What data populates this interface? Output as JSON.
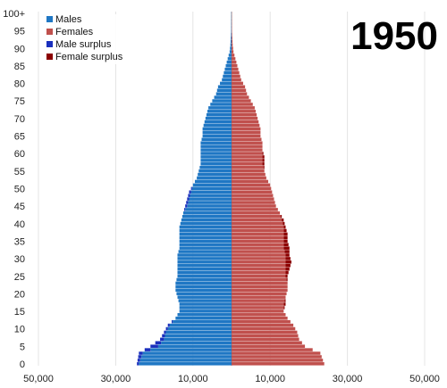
{
  "chart_data": {
    "type": "bar",
    "title": "1950",
    "orientation": "horizontal population pyramid",
    "y_tick_labels": [
      "0",
      "5",
      "10",
      "15",
      "20",
      "25",
      "30",
      "35",
      "40",
      "45",
      "50",
      "55",
      "60",
      "65",
      "70",
      "75",
      "80",
      "85",
      "90",
      "95",
      "100+"
    ],
    "x_tick_labels": [
      "50,000",
      "30,000",
      "10,000",
      "10,000",
      "30,000",
      "50,000"
    ],
    "x_tick_values": [
      -50000,
      -30000,
      -10000,
      10000,
      30000,
      50000
    ],
    "xlim": [
      -50000,
      50000
    ],
    "grid": "vertical",
    "legend_position": "top-left",
    "legend": [
      {
        "key": "males",
        "label": "Males",
        "color": "#1f77c4"
      },
      {
        "key": "females",
        "label": "Females",
        "color": "#c0504d"
      },
      {
        "key": "male_surplus",
        "label": "Male surplus",
        "color": "#1a2fbd"
      },
      {
        "key": "female_surplus",
        "label": "Female surplus",
        "color": "#8b0000"
      }
    ],
    "male_keys": [
      [
        0,
        24500
      ],
      [
        3,
        24000
      ],
      [
        5,
        21000
      ],
      [
        7,
        18500
      ],
      [
        9,
        17500
      ],
      [
        11,
        16500
      ],
      [
        13,
        14500
      ],
      [
        15,
        13500
      ],
      [
        17,
        13500
      ],
      [
        19,
        14000
      ],
      [
        21,
        14500
      ],
      [
        23,
        14500
      ],
      [
        25,
        14000
      ],
      [
        27,
        14000
      ],
      [
        29,
        14000
      ],
      [
        31,
        14000
      ],
      [
        33,
        13500
      ],
      [
        35,
        13500
      ],
      [
        37,
        13500
      ],
      [
        39,
        13500
      ],
      [
        41,
        13000
      ],
      [
        43,
        12500
      ],
      [
        45,
        12000
      ],
      [
        47,
        11500
      ],
      [
        49,
        11000
      ],
      [
        51,
        10000
      ],
      [
        53,
        9000
      ],
      [
        55,
        8500
      ],
      [
        57,
        8000
      ],
      [
        59,
        8000
      ],
      [
        61,
        8000
      ],
      [
        63,
        8000
      ],
      [
        65,
        7500
      ],
      [
        67,
        7500
      ],
      [
        69,
        7000
      ],
      [
        71,
        6500
      ],
      [
        73,
        6000
      ],
      [
        75,
        5000
      ],
      [
        77,
        4000
      ],
      [
        79,
        3500
      ],
      [
        81,
        2500
      ],
      [
        83,
        2000
      ],
      [
        85,
        1500
      ],
      [
        87,
        1000
      ],
      [
        89,
        500
      ],
      [
        91,
        300
      ],
      [
        95,
        100
      ],
      [
        100,
        50
      ]
    ],
    "female_keys": [
      [
        0,
        24000
      ],
      [
        3,
        23000
      ],
      [
        5,
        19000
      ],
      [
        7,
        17500
      ],
      [
        9,
        17000
      ],
      [
        11,
        16000
      ],
      [
        13,
        14500
      ],
      [
        15,
        13500
      ],
      [
        17,
        14000
      ],
      [
        19,
        14000
      ],
      [
        21,
        14500
      ],
      [
        23,
        14500
      ],
      [
        25,
        14500
      ],
      [
        27,
        15000
      ],
      [
        29,
        15500
      ],
      [
        31,
        15000
      ],
      [
        33,
        15000
      ],
      [
        35,
        14500
      ],
      [
        37,
        14500
      ],
      [
        39,
        14000
      ],
      [
        41,
        13500
      ],
      [
        43,
        12500
      ],
      [
        45,
        11500
      ],
      [
        47,
        11000
      ],
      [
        49,
        10500
      ],
      [
        51,
        10000
      ],
      [
        53,
        9000
      ],
      [
        55,
        8500
      ],
      [
        57,
        8500
      ],
      [
        59,
        8500
      ],
      [
        61,
        8000
      ],
      [
        63,
        8000
      ],
      [
        65,
        7500
      ],
      [
        67,
        7500
      ],
      [
        69,
        7000
      ],
      [
        71,
        6500
      ],
      [
        73,
        6000
      ],
      [
        75,
        5000
      ],
      [
        77,
        4000
      ],
      [
        79,
        3500
      ],
      [
        81,
        2500
      ],
      [
        83,
        2000
      ],
      [
        85,
        1500
      ],
      [
        87,
        1000
      ],
      [
        89,
        500
      ],
      [
        91,
        300
      ],
      [
        95,
        100
      ],
      [
        100,
        50
      ]
    ]
  }
}
